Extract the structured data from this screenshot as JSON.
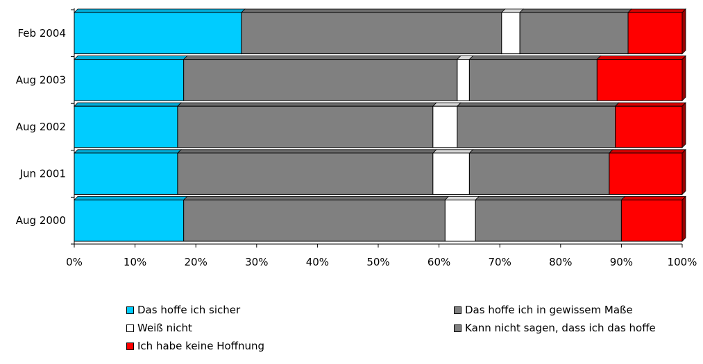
{
  "chart_data": {
    "type": "bar",
    "orientation": "horizontal",
    "stacked": "100%",
    "categories": [
      "Feb 2004",
      "Aug 2003",
      "Aug 2002",
      "Jun 2001",
      "Aug 2000"
    ],
    "series": [
      {
        "name": "Das hoffe ich sicher",
        "color": "#00ccff",
        "values": [
          27.5,
          18,
          17,
          17,
          18
        ]
      },
      {
        "name": "Das hoffe ich in gewissem Maße",
        "color": "#808080",
        "values": [
          42.8,
          45,
          42,
          42,
          43
        ]
      },
      {
        "name": "Weiß nicht",
        "color": "#ffffff",
        "values": [
          3,
          2,
          4,
          6,
          5
        ]
      },
      {
        "name": "Kann nicht sagen, dass ich das hoffe",
        "color": "#808080",
        "values": [
          17.8,
          21,
          26,
          23,
          24
        ]
      },
      {
        "name": "Ich habe keine Hoffnung",
        "color": "#ff0000",
        "values": [
          8.9,
          14,
          11,
          12,
          10
        ]
      }
    ],
    "x_ticks": [
      "0%",
      "10%",
      "20%",
      "30%",
      "40%",
      "50%",
      "60%",
      "70%",
      "80%",
      "90%",
      "100%"
    ],
    "xlim": [
      0,
      100
    ],
    "grid": false,
    "legend_position": "bottom"
  }
}
